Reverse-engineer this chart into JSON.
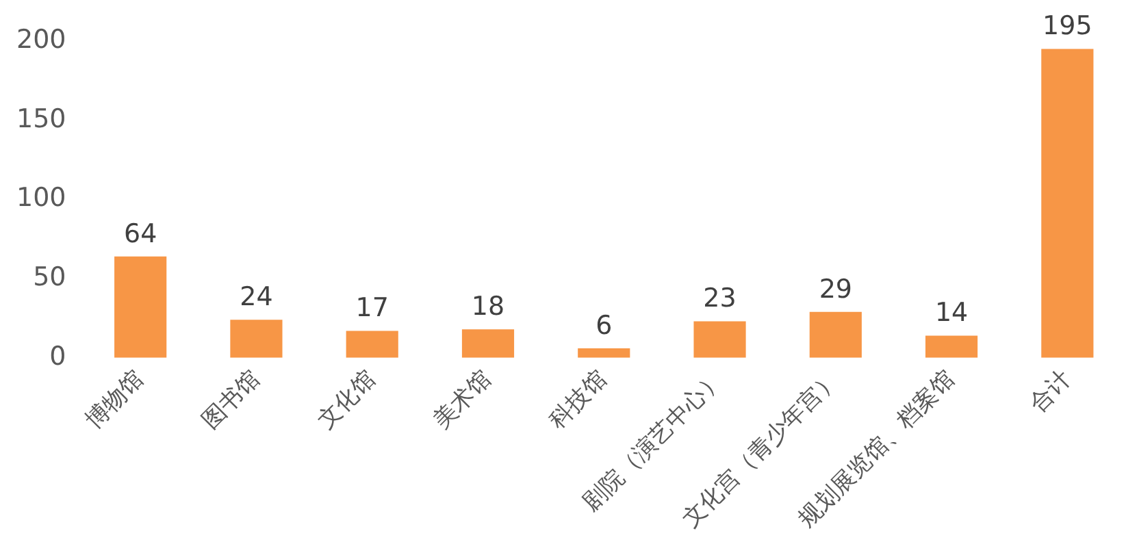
{
  "chart_data": {
    "type": "bar",
    "categories": [
      "博物馆",
      "图书馆",
      "文化馆",
      "美术馆",
      "科技馆",
      "剧院（演艺中心）",
      "文化宫（青少年宫）",
      "规划展览馆、档案馆",
      "合计"
    ],
    "values": [
      64,
      24,
      17,
      18,
      6,
      23,
      29,
      14,
      195
    ],
    "color": "#f79646",
    "ylim": [
      0,
      200
    ],
    "yticks": [
      0,
      50,
      100,
      150,
      200
    ],
    "grid": false,
    "legend": false,
    "data_labels": true
  }
}
